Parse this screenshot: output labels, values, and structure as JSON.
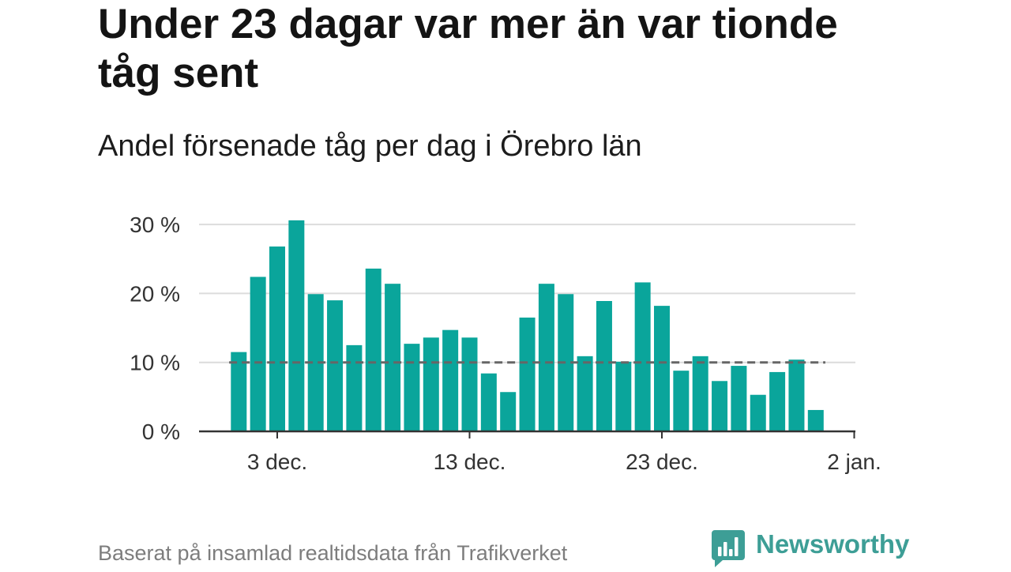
{
  "chart_data": {
    "type": "bar",
    "title": "Under 23 dagar var mer än var tionde tåg sent",
    "subtitle": "Andel försenade tåg per dag i Örebro län",
    "x": [
      "1 dec.",
      "2 dec.",
      "3 dec.",
      "4 dec.",
      "5 dec.",
      "6 dec.",
      "7 dec.",
      "8 dec.",
      "9 dec.",
      "10 dec.",
      "11 dec.",
      "12 dec.",
      "13 dec.",
      "14 dec.",
      "15 dec.",
      "16 dec.",
      "17 dec.",
      "18 dec.",
      "19 dec.",
      "20 dec.",
      "21 dec.",
      "22 dec.",
      "23 dec.",
      "24 dec.",
      "25 dec.",
      "26 dec.",
      "27 dec.",
      "28 dec.",
      "29 dec.",
      "30 dec.",
      "31 dec."
    ],
    "values": [
      11.5,
      22.4,
      26.8,
      30.6,
      19.9,
      19.0,
      12.5,
      23.6,
      21.4,
      12.7,
      13.6,
      14.7,
      13.6,
      8.4,
      5.7,
      16.5,
      21.4,
      19.9,
      10.9,
      18.9,
      10.1,
      21.6,
      18.2,
      8.8,
      10.9,
      7.3,
      9.5,
      5.3,
      8.6,
      10.4,
      3.1
    ],
    "ylim": [
      0,
      30
    ],
    "yticks": [
      0,
      10,
      20,
      30
    ],
    "ytick_labels": [
      "0 %",
      "10 %",
      "20 %",
      "30 %"
    ],
    "xticks": [
      "3 dec.",
      "13 dec.",
      "23 dec.",
      "2 jan."
    ],
    "reference_line": {
      "value": 10,
      "color": "#666666"
    },
    "grid": true,
    "legend": false,
    "bar_color": "#0aa59b"
  },
  "footer": {
    "source": "Baserat på insamlad realtidsdata från Trafikverket"
  },
  "logo": {
    "text": "Newsworthy",
    "icon": "newsworthy-logo-icon",
    "color": "#3d9e96"
  }
}
